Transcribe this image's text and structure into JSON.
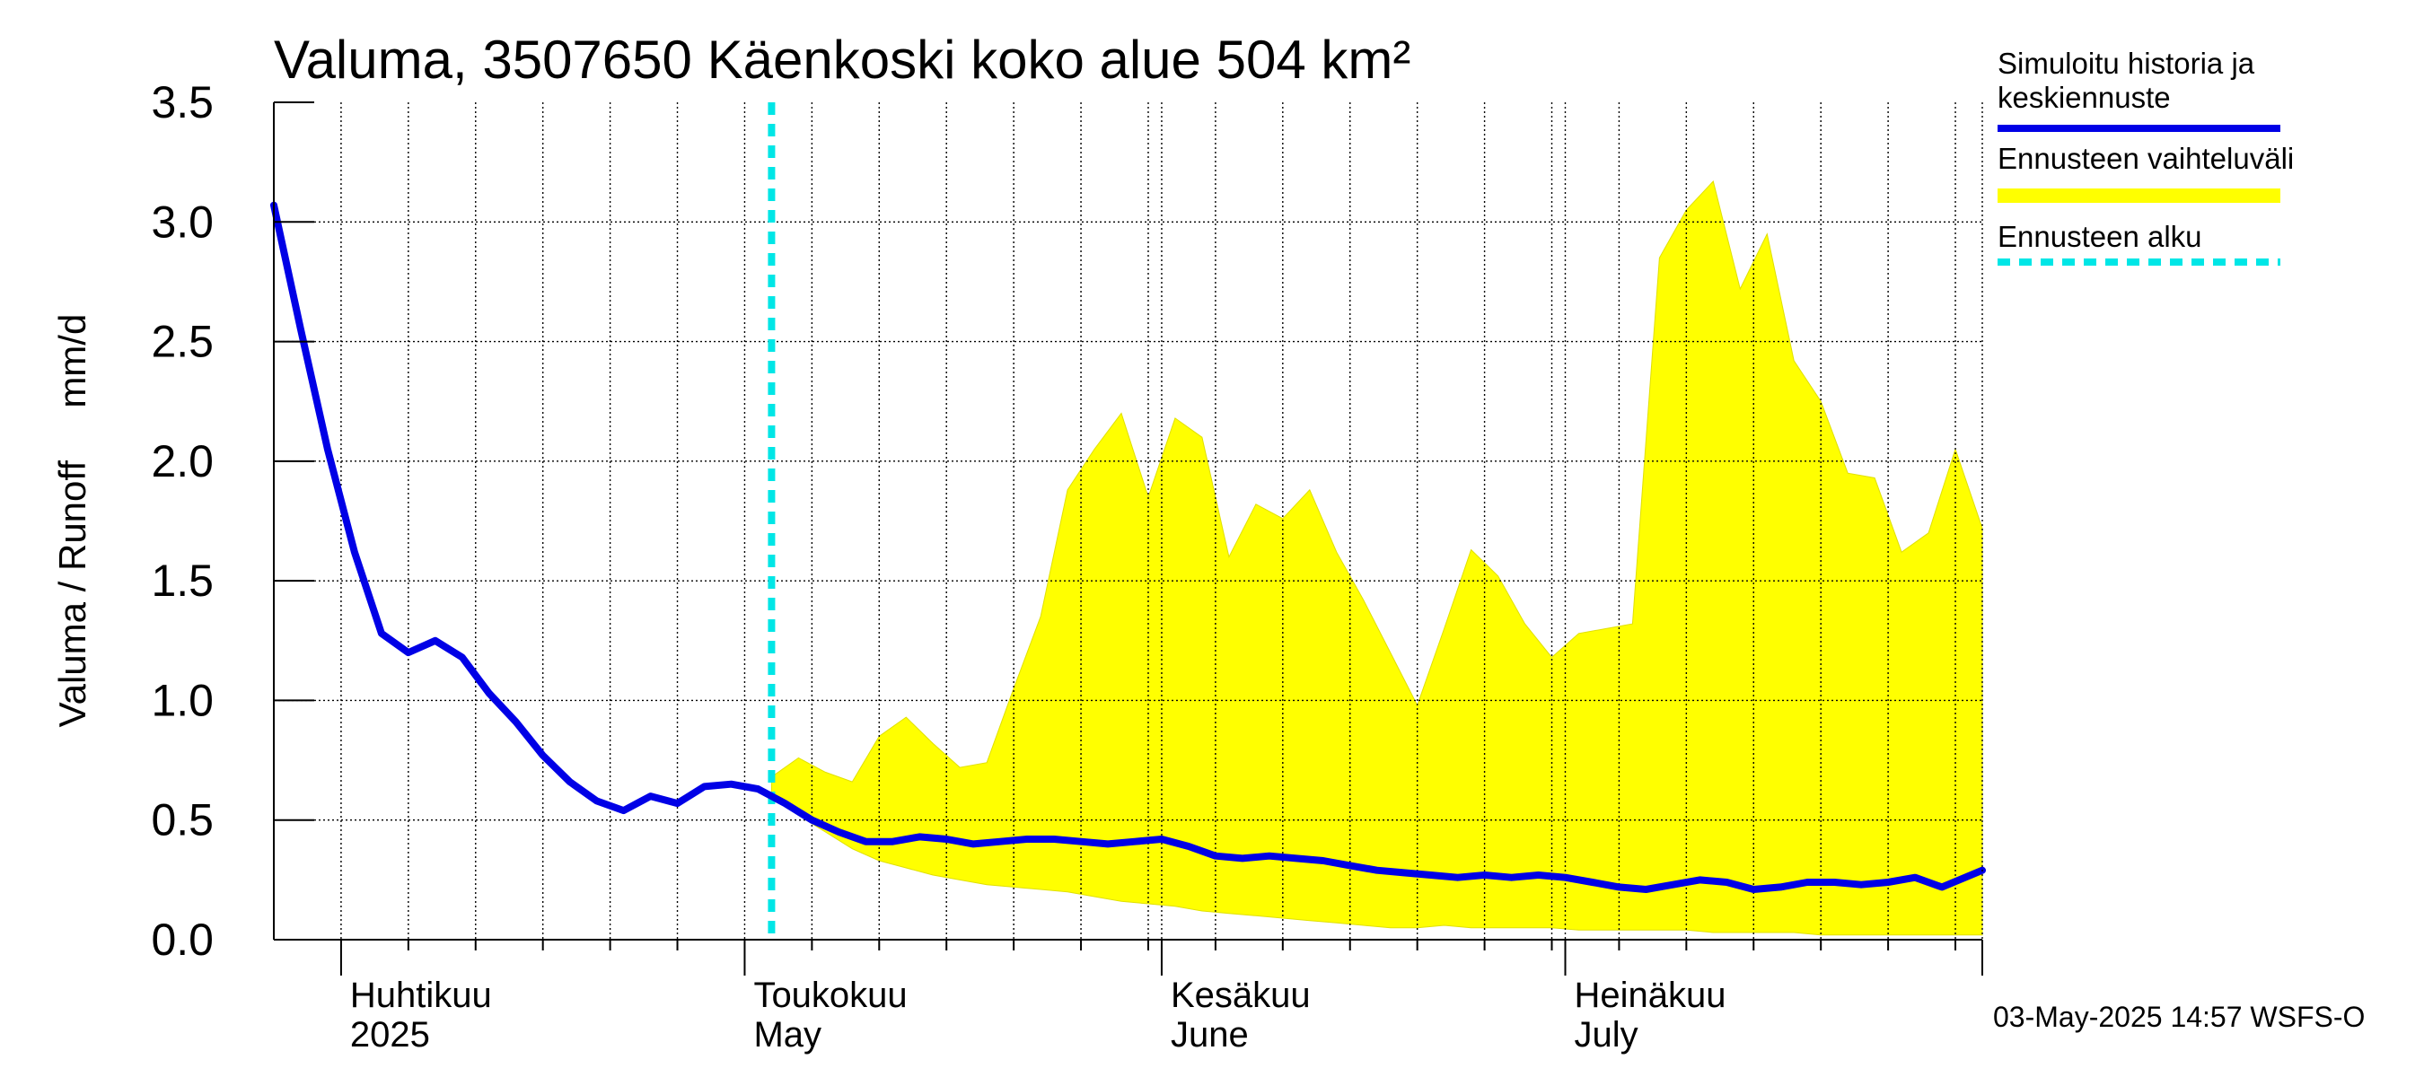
{
  "chart_data": {
    "type": "line",
    "title": "Valuma, 3507650 Käenkoski koko alue 504 km²",
    "ylabel": "Valuma / Runoff     mm/d",
    "ylim": [
      0.0,
      3.5
    ],
    "xlim": [
      "2025-03-27",
      "2025-08-01"
    ],
    "y_ticks": [
      "0.0",
      "0.5",
      "1.0",
      "1.5",
      "2.0",
      "2.5",
      "3.0",
      "3.5"
    ],
    "grid": true,
    "legend_position": "right",
    "month_labels": [
      {
        "date": "2025-04-01",
        "fi": "Huhtikuu",
        "en": "2025"
      },
      {
        "date": "2025-05-01",
        "fi": "Toukokuu",
        "en": "May"
      },
      {
        "date": "2025-06-01",
        "fi": "Kesäkuu",
        "en": "June"
      },
      {
        "date": "2025-07-01",
        "fi": "Heinäkuu",
        "en": "July"
      }
    ],
    "month_starts": [
      "2025-04-01",
      "2025-05-01",
      "2025-06-01",
      "2025-07-01",
      "2025-08-01"
    ],
    "forecast_start": "2025-05-03",
    "legend": [
      {
        "label_lines": [
          "Simuloitu historia ja",
          "keskiennuste"
        ],
        "style": "line",
        "color": "#0000e6"
      },
      {
        "label_lines": [
          "Ennusteen vaihteluväli"
        ],
        "style": "band",
        "color": "#ffff00"
      },
      {
        "label_lines": [
          "Ennusteen alku"
        ],
        "style": "dashed",
        "color": "#00e6e6"
      }
    ],
    "colors": {
      "history": "#0000e6",
      "band": "#ffff00",
      "band_edge": "#e0e000",
      "forecast_start": "#00e6e6",
      "grid": "#000000"
    },
    "series": [
      {
        "name": "Simuloitu historia ja keskiennuste",
        "x": [
          "2025-03-27",
          "2025-03-29",
          "2025-03-31",
          "2025-04-02",
          "2025-04-04",
          "2025-04-06",
          "2025-04-08",
          "2025-04-10",
          "2025-04-12",
          "2025-04-14",
          "2025-04-16",
          "2025-04-18",
          "2025-04-20",
          "2025-04-22",
          "2025-04-24",
          "2025-04-26",
          "2025-04-28",
          "2025-04-30",
          "2025-05-02",
          "2025-05-04",
          "2025-05-06",
          "2025-05-08",
          "2025-05-10",
          "2025-05-12",
          "2025-05-14",
          "2025-05-16",
          "2025-05-18",
          "2025-05-20",
          "2025-05-22",
          "2025-05-24",
          "2025-05-26",
          "2025-05-28",
          "2025-05-30",
          "2025-06-01",
          "2025-06-03",
          "2025-06-05",
          "2025-06-07",
          "2025-06-09",
          "2025-06-11",
          "2025-06-13",
          "2025-06-15",
          "2025-06-17",
          "2025-06-19",
          "2025-06-21",
          "2025-06-23",
          "2025-06-25",
          "2025-06-27",
          "2025-06-29",
          "2025-07-01",
          "2025-07-03",
          "2025-07-05",
          "2025-07-07",
          "2025-07-09",
          "2025-07-11",
          "2025-07-13",
          "2025-07-15",
          "2025-07-17",
          "2025-07-19",
          "2025-07-21",
          "2025-07-23",
          "2025-07-25",
          "2025-07-27",
          "2025-07-29",
          "2025-08-01"
        ],
        "values": [
          3.07,
          2.55,
          2.05,
          1.62,
          1.28,
          1.2,
          1.25,
          1.18,
          1.03,
          0.91,
          0.77,
          0.66,
          0.58,
          0.54,
          0.6,
          0.57,
          0.64,
          0.65,
          0.63,
          0.57,
          0.5,
          0.45,
          0.41,
          0.41,
          0.43,
          0.42,
          0.4,
          0.41,
          0.42,
          0.42,
          0.41,
          0.4,
          0.41,
          0.42,
          0.39,
          0.35,
          0.34,
          0.35,
          0.34,
          0.33,
          0.31,
          0.29,
          0.28,
          0.27,
          0.26,
          0.27,
          0.26,
          0.27,
          0.26,
          0.24,
          0.22,
          0.21,
          0.23,
          0.25,
          0.24,
          0.21,
          0.22,
          0.24,
          0.24,
          0.23,
          0.24,
          0.26,
          0.22,
          0.29
        ]
      },
      {
        "name": "Ennusteen vaihteluväli (max)",
        "x": [
          "2025-05-03",
          "2025-05-05",
          "2025-05-07",
          "2025-05-09",
          "2025-05-11",
          "2025-05-13",
          "2025-05-15",
          "2025-05-17",
          "2025-05-19",
          "2025-05-21",
          "2025-05-23",
          "2025-05-25",
          "2025-05-27",
          "2025-05-29",
          "2025-05-31",
          "2025-06-02",
          "2025-06-04",
          "2025-06-06",
          "2025-06-08",
          "2025-06-10",
          "2025-06-12",
          "2025-06-14",
          "2025-06-16",
          "2025-06-18",
          "2025-06-20",
          "2025-06-22",
          "2025-06-24",
          "2025-06-26",
          "2025-06-28",
          "2025-06-30",
          "2025-07-02",
          "2025-07-04",
          "2025-07-06",
          "2025-07-08",
          "2025-07-10",
          "2025-07-12",
          "2025-07-14",
          "2025-07-16",
          "2025-07-18",
          "2025-07-20",
          "2025-07-22",
          "2025-07-24",
          "2025-07-26",
          "2025-07-28",
          "2025-07-30",
          "2025-08-01"
        ],
        "values": [
          0.68,
          0.76,
          0.7,
          0.66,
          0.85,
          0.93,
          0.82,
          0.72,
          0.74,
          1.05,
          1.35,
          1.88,
          2.05,
          2.2,
          1.85,
          2.18,
          2.1,
          1.6,
          1.82,
          1.76,
          1.88,
          1.62,
          1.42,
          1.2,
          0.98,
          1.3,
          1.63,
          1.52,
          1.32,
          1.18,
          1.28,
          1.3,
          1.32,
          2.85,
          3.05,
          3.17,
          2.72,
          2.95,
          2.42,
          2.25,
          1.95,
          1.93,
          1.62,
          1.7,
          2.05,
          1.72
        ]
      },
      {
        "name": "Ennusteen vaihteluväli (min)",
        "x": [
          "2025-05-03",
          "2025-05-05",
          "2025-05-07",
          "2025-05-09",
          "2025-05-11",
          "2025-05-13",
          "2025-05-15",
          "2025-05-17",
          "2025-05-19",
          "2025-05-21",
          "2025-05-23",
          "2025-05-25",
          "2025-05-27",
          "2025-05-29",
          "2025-05-31",
          "2025-06-02",
          "2025-06-04",
          "2025-06-06",
          "2025-06-08",
          "2025-06-10",
          "2025-06-12",
          "2025-06-14",
          "2025-06-16",
          "2025-06-18",
          "2025-06-20",
          "2025-06-22",
          "2025-06-24",
          "2025-06-26",
          "2025-06-28",
          "2025-06-30",
          "2025-07-02",
          "2025-07-04",
          "2025-07-06",
          "2025-07-08",
          "2025-07-10",
          "2025-07-12",
          "2025-07-14",
          "2025-07-16",
          "2025-07-18",
          "2025-07-20",
          "2025-07-22",
          "2025-07-24",
          "2025-07-26",
          "2025-07-28",
          "2025-07-30",
          "2025-08-01"
        ],
        "values": [
          0.6,
          0.52,
          0.45,
          0.38,
          0.33,
          0.3,
          0.27,
          0.25,
          0.23,
          0.22,
          0.21,
          0.2,
          0.18,
          0.16,
          0.15,
          0.14,
          0.12,
          0.11,
          0.1,
          0.09,
          0.08,
          0.07,
          0.06,
          0.05,
          0.05,
          0.06,
          0.05,
          0.05,
          0.05,
          0.05,
          0.04,
          0.04,
          0.04,
          0.04,
          0.04,
          0.03,
          0.03,
          0.03,
          0.03,
          0.02,
          0.02,
          0.02,
          0.02,
          0.02,
          0.02,
          0.02
        ]
      }
    ]
  },
  "footer": {
    "timestamp": "03-May-2025 14:57 WSFS-O"
  }
}
